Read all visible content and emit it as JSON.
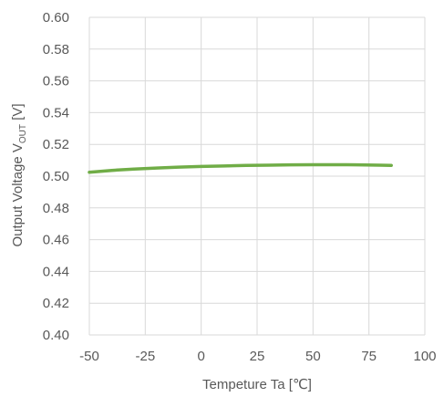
{
  "chart_data": {
    "type": "line",
    "title": "",
    "xlabel": "Tempeture  Ta [℃]",
    "ylabel": {
      "prefix": "Output  Voltage  V",
      "subscript": "OUT",
      "suffix": " [V]"
    },
    "xlim": [
      -50,
      100
    ],
    "ylim": [
      0.4,
      0.6
    ],
    "x_ticks": [
      -50,
      -25,
      0,
      25,
      50,
      75,
      100
    ],
    "y_ticks": [
      0.4,
      0.42,
      0.44,
      0.46,
      0.48,
      0.5,
      0.52,
      0.54,
      0.56,
      0.58,
      0.6
    ],
    "y_tick_labels": [
      "0.40",
      "0.42",
      "0.44",
      "0.46",
      "0.48",
      "0.50",
      "0.52",
      "0.54",
      "0.56",
      "0.58",
      "0.60"
    ],
    "grid": true,
    "legend": false,
    "series": [
      {
        "color": "#70ad47",
        "x": [
          -50,
          -40,
          -30,
          -20,
          -10,
          0,
          10,
          20,
          30,
          40,
          50,
          60,
          70,
          80,
          85
        ],
        "y": [
          0.5025,
          0.5036,
          0.5045,
          0.5051,
          0.5057,
          0.5061,
          0.5064,
          0.5067,
          0.5069,
          0.5071,
          0.5072,
          0.5072,
          0.5071,
          0.5069,
          0.5068
        ]
      }
    ]
  }
}
